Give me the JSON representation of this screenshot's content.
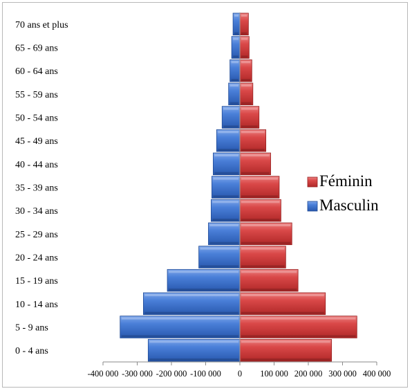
{
  "chart_data": {
    "type": "bar",
    "orientation": "horizontal",
    "layout": "population-pyramid",
    "categories": [
      "0 - 4 ans",
      "5 - 9 ans",
      "10 - 14 ans",
      "15 - 19 ans",
      "20 - 24 ans",
      "25 - 29 ans",
      "30  - 34 ans",
      "35  - 39 ans",
      "40 - 44 ans",
      "45 - 49 ans",
      "50 - 54 ans",
      "55 - 59 ans",
      "60 - 64 ans",
      "65 - 69 ans",
      "70 ans et plus"
    ],
    "series": [
      {
        "name": "Masculin",
        "color": "#3366cc",
        "values": [
          -268000,
          -350000,
          -282000,
          -212000,
          -120000,
          -92000,
          -84000,
          -82000,
          -78000,
          -68000,
          -52000,
          -33000,
          -29000,
          -24000,
          -20000
        ]
      },
      {
        "name": "Féminin",
        "color": "#cc3333",
        "values": [
          268000,
          342000,
          250000,
          170000,
          134000,
          152000,
          120000,
          115000,
          90000,
          76000,
          56000,
          38000,
          35000,
          27000,
          25000
        ]
      }
    ],
    "xlim": [
      -400000,
      400000
    ],
    "x_ticks": [
      {
        "value": -400000,
        "label": "-400 000"
      },
      {
        "value": -300000,
        "label": "-300 000"
      },
      {
        "value": -200000,
        "label": "-200 000"
      },
      {
        "value": -100000,
        "label": "-100 000"
      },
      {
        "value": 0,
        "label": "0"
      },
      {
        "value": 100000,
        "label": "100 000"
      },
      {
        "value": 200000,
        "label": "200 000"
      },
      {
        "value": 300000,
        "label": "300 000"
      },
      {
        "value": 400000,
        "label": "400 000"
      }
    ],
    "legend": {
      "position": "right",
      "order": [
        "Féminin",
        "Masculin"
      ]
    },
    "grid": false,
    "title": "",
    "xlabel": "",
    "ylabel": ""
  }
}
